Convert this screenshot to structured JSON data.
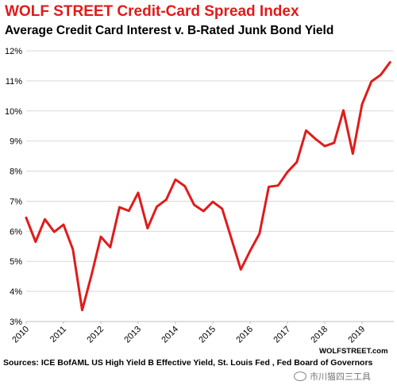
{
  "title": "WOLF STREET Credit-Card Spread Index",
  "subtitle": "Average Credit Card Interest v. B-Rated Junk Bond Yield",
  "source": "Sources: ICE BofAML US High Yield B Effective Yield, St. Louis Fed , Fed Board of Governors",
  "brand": "WOLFSTREET.com",
  "watermark": "市川猫四三工具",
  "colors": {
    "line": "#e01b1b",
    "title": "#e01b1b",
    "grid": "#d9d9d9"
  },
  "chart_data": {
    "type": "line",
    "title": "WOLF STREET Credit-Card Spread Index",
    "xlabel": "",
    "ylabel": "",
    "xlim": [
      2010,
      2019.85
    ],
    "ylim": [
      3,
      12
    ],
    "grid": true,
    "yticks": [
      3,
      4,
      5,
      6,
      7,
      8,
      9,
      10,
      11,
      12
    ],
    "ytick_labels": [
      "3%",
      "4%",
      "5%",
      "6%",
      "7%",
      "8%",
      "9%",
      "10%",
      "11%",
      "12%"
    ],
    "xticks": [
      2010,
      2011,
      2012,
      2013,
      2014,
      2015,
      2016,
      2017,
      2018,
      2019
    ],
    "xtick_labels": [
      "2010",
      "2011",
      "2012",
      "2013",
      "2014",
      "2015",
      "2016",
      "2017",
      "2018",
      "2019"
    ],
    "series": [
      {
        "x": [
          2010.0,
          2010.25,
          2010.5,
          2010.75,
          2011.0,
          2011.25,
          2011.5,
          2011.75,
          2012.0,
          2012.25,
          2012.5,
          2012.75,
          2013.0,
          2013.25,
          2013.5,
          2013.75,
          2014.0,
          2014.25,
          2014.5,
          2014.75,
          2015.0,
          2015.25,
          2015.5,
          2015.75,
          2016.0,
          2016.25,
          2016.5,
          2016.75,
          2017.0,
          2017.25,
          2017.5,
          2017.75,
          2018.0,
          2018.25,
          2018.5,
          2018.75,
          2019.0,
          2019.25,
          2019.5,
          2019.75
        ],
        "values": [
          6.45,
          5.65,
          6.4,
          5.98,
          6.22,
          5.4,
          3.38,
          4.55,
          5.82,
          5.47,
          6.8,
          6.68,
          7.28,
          6.1,
          6.82,
          7.05,
          7.72,
          7.5,
          6.88,
          6.67,
          6.98,
          6.75,
          5.75,
          4.73,
          5.35,
          5.92,
          7.48,
          7.52,
          7.97,
          8.3,
          9.35,
          9.07,
          8.83,
          8.94,
          10.02,
          8.58,
          10.22,
          10.98,
          11.2,
          11.62
        ]
      }
    ]
  }
}
